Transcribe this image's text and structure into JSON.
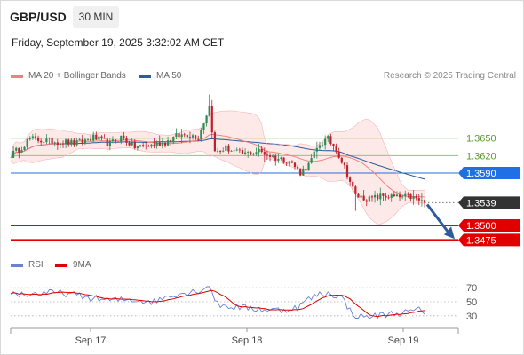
{
  "header": {
    "symbol": "GBP/USD",
    "timeframe": "30 MIN",
    "datetime": "Friday, September 19, 2025 3:32:02 AM CET"
  },
  "legend": {
    "bollinger_label": "MA 20 + Bollinger Bands",
    "ma50_label": "MA 50",
    "research": "Research © 2025 Trading Central"
  },
  "rsi_legend": {
    "rsi_label": "RSI",
    "ma_label": "9MA"
  },
  "colors": {
    "bollinger": "#f08080",
    "band_fill": "#fde2e2",
    "ma50": "#2f5b9c",
    "resistance_green": "#8fc76a",
    "pivot_blue": "#1f6fe5",
    "support_red": "#e00000",
    "current_dark": "#333333",
    "candle_up": "#2e8b57",
    "candle_down": "#c0202a",
    "rsi": "#6a7fd6",
    "rsi_ma": "#e00000",
    "arrow": "#2f5b9c"
  },
  "chart_data": [
    {
      "type": "candlestick",
      "instrument": "GBP/USD",
      "timeframe": "30 MIN",
      "x_ticks": [
        "Sep 17",
        "Sep 18",
        "Sep 19"
      ],
      "ylim": [
        1.3445,
        1.3735
      ],
      "levels": [
        {
          "name": "resistance-2",
          "value": 1.365,
          "label": "1.3650",
          "role": "resistance"
        },
        {
          "name": "resistance-1",
          "value": 1.362,
          "label": "1.3620",
          "role": "resistance"
        },
        {
          "name": "pivot",
          "value": 1.359,
          "label": "1.3590",
          "role": "pivot"
        },
        {
          "name": "current",
          "value": 1.3539,
          "label": "1.3539",
          "role": "last-price"
        },
        {
          "name": "support-1",
          "value": 1.35,
          "label": "1.3500",
          "role": "support"
        },
        {
          "name": "support-2",
          "value": 1.3475,
          "label": "1.3475",
          "role": "support"
        }
      ],
      "anchors": [
        [
          0,
          1.3621
        ],
        [
          3,
          1.3631
        ],
        [
          7,
          1.3649
        ],
        [
          12,
          1.3646
        ],
        [
          18,
          1.3644
        ],
        [
          24,
          1.3641
        ],
        [
          30,
          1.3651
        ],
        [
          36,
          1.364
        ],
        [
          40,
          1.3652
        ],
        [
          45,
          1.3635
        ],
        [
          50,
          1.3637
        ],
        [
          56,
          1.3643
        ],
        [
          60,
          1.3653
        ],
        [
          64,
          1.3657
        ],
        [
          68,
          1.3652
        ],
        [
          72,
          1.3705
        ],
        [
          74,
          1.3625
        ],
        [
          78,
          1.3633
        ],
        [
          84,
          1.3622
        ],
        [
          90,
          1.3628
        ],
        [
          96,
          1.3616
        ],
        [
          101,
          1.3611
        ],
        [
          105,
          1.3591
        ],
        [
          108,
          1.3604
        ],
        [
          112,
          1.364
        ],
        [
          115,
          1.3648
        ],
        [
          118,
          1.3631
        ],
        [
          121,
          1.36
        ],
        [
          125,
          1.3551
        ],
        [
          130,
          1.3545
        ],
        [
          135,
          1.3551
        ],
        [
          140,
          1.3548
        ],
        [
          145,
          1.3549
        ],
        [
          150,
          1.3539
        ]
      ],
      "notes": "Price path estimated from the chart; arrow projects a decline toward 1.3475."
    },
    {
      "type": "line",
      "name": "RSI",
      "y_ticks": [
        70,
        50,
        30
      ],
      "ylim": [
        12,
        88
      ],
      "anchors": [
        [
          0,
          63
        ],
        [
          6,
          60
        ],
        [
          12,
          63
        ],
        [
          20,
          62
        ],
        [
          28,
          56
        ],
        [
          36,
          52
        ],
        [
          44,
          53
        ],
        [
          52,
          50
        ],
        [
          58,
          60
        ],
        [
          64,
          63
        ],
        [
          68,
          66
        ],
        [
          72,
          73
        ],
        [
          75,
          46
        ],
        [
          80,
          43
        ],
        [
          86,
          41
        ],
        [
          92,
          39
        ],
        [
          98,
          38
        ],
        [
          104,
          42
        ],
        [
          108,
          54
        ],
        [
          112,
          61
        ],
        [
          116,
          62
        ],
        [
          120,
          56
        ],
        [
          124,
          32
        ],
        [
          128,
          28
        ],
        [
          132,
          30
        ],
        [
          138,
          33
        ],
        [
          144,
          35
        ],
        [
          148,
          38
        ],
        [
          150,
          36
        ]
      ]
    }
  ]
}
